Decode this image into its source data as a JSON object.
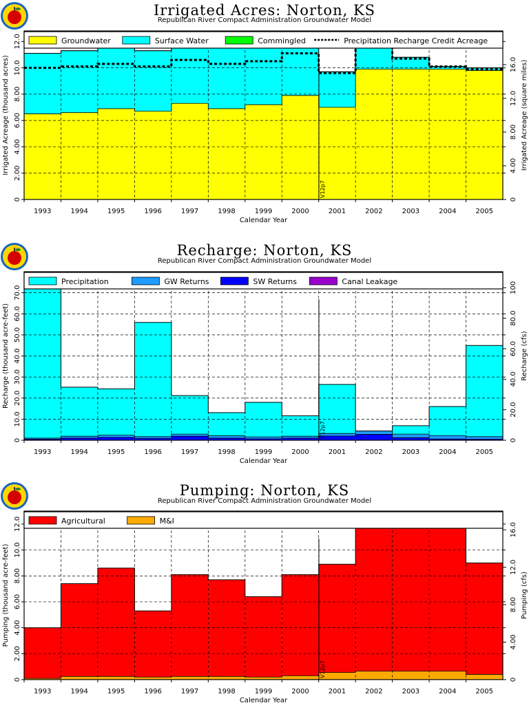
{
  "charts": [
    {
      "title": "Irrigated Acres: Norton, KS",
      "subtitle": "Republican River Compact Administration Groundwater Model",
      "ylabel": "Irrigated Acreage (thousand acres)",
      "y2label": "Irrigated Acreage (square miles)",
      "xlabel": "Calendar Year",
      "marker": "V12p7"
    },
    {
      "title": "Recharge: Norton, KS",
      "subtitle": "Republican River Compact Administration Groundwater Model",
      "ylabel": "Recharge (thousand acre-feet)",
      "y2label": "Recharge (cfs)",
      "xlabel": "Calendar Year",
      "marker": "V12p7"
    },
    {
      "title": "Pumping: Norton, KS",
      "subtitle": "Republican River Compact Administration Groundwater Model",
      "ylabel": "Pumping (thousand acre-feet)",
      "y2label": "Pumping (cfs)",
      "xlabel": "Calendar Year",
      "marker": "V12p7"
    }
  ],
  "chart_data": [
    {
      "type": "area",
      "stacked": true,
      "step": true,
      "categories": [
        "1993",
        "1994",
        "1995",
        "1996",
        "1997",
        "1998",
        "1999",
        "2000",
        "2001",
        "2002",
        "2003",
        "2004",
        "2005"
      ],
      "series": [
        {
          "name": "Groundwater",
          "color": "#ffff00",
          "values": [
            6.5,
            6.6,
            6.9,
            6.7,
            7.3,
            6.9,
            7.2,
            7.9,
            7.0,
            9.9,
            9.9,
            9.9,
            9.8
          ]
        },
        {
          "name": "Surface Water",
          "color": "#00ffff",
          "values": [
            4.6,
            4.7,
            4.7,
            4.6,
            4.6,
            4.6,
            4.5,
            4.6,
            2.7,
            2.5,
            0.9,
            0.2,
            0.2
          ]
        },
        {
          "name": "Commingled",
          "color": "#00ff00",
          "values": [
            0,
            0,
            0,
            0,
            0,
            0,
            0,
            0,
            0,
            0,
            0,
            0,
            0
          ]
        }
      ],
      "lines": [
        {
          "name": "Precipitation Recharge Credit Acreage",
          "style": "dashed",
          "values": [
            10.0,
            10.1,
            10.3,
            10.1,
            10.6,
            10.3,
            10.5,
            11.1,
            9.6,
            12.4,
            10.7,
            10.1,
            9.9
          ]
        }
      ],
      "ylim": [
        0,
        12.8
      ],
      "yticks": [
        "0",
        "2.00",
        "4.00",
        "6.00",
        "8.00",
        "10.0",
        "12.0"
      ],
      "y2lim": [
        0,
        20.0
      ],
      "y2ticks": [
        "0",
        "4.00",
        "8.00",
        "12.0",
        "16.0"
      ],
      "grid": true,
      "legend": "top"
    },
    {
      "type": "area",
      "stacked": true,
      "step": true,
      "categories": [
        "1993",
        "1994",
        "1995",
        "1996",
        "1997",
        "1998",
        "1999",
        "2000",
        "2001",
        "2002",
        "2003",
        "2004",
        "2005"
      ],
      "series": [
        {
          "name": "Canal Leakage",
          "color": "#9900cc",
          "values": [
            0,
            0,
            0,
            0,
            0,
            0,
            0,
            0,
            0,
            0,
            0,
            0,
            0
          ]
        },
        {
          "name": "SW Returns",
          "color": "#0000ff",
          "values": [
            0.5,
            1.0,
            1.4,
            0.9,
            1.9,
            1.0,
            0.7,
            1.0,
            2.0,
            2.8,
            1.2,
            0.6,
            0.5
          ]
        },
        {
          "name": "GW Returns",
          "color": "#1e9bff",
          "values": [
            0.5,
            0.9,
            1.0,
            0.8,
            1.0,
            1.1,
            0.9,
            0.9,
            1.2,
            1.6,
            1.7,
            1.6,
            1.2
          ]
        },
        {
          "name": "Precipitation",
          "color": "#00ffff",
          "values": [
            77.0,
            23.3,
            22.0,
            54.2,
            18.3,
            11.0,
            16.4,
            9.7,
            23.3,
            0,
            4.0,
            13.8,
            43.3
          ]
        }
      ],
      "ylim": [
        0,
        80.0
      ],
      "yticks": [
        "0",
        "10.0",
        "20.0",
        "30.0",
        "40.0",
        "50.0",
        "60.0",
        "70.0"
      ],
      "y2lim": [
        0,
        110.5
      ],
      "y2ticks": [
        "0",
        "20.0",
        "40.0",
        "60.0",
        "80.0",
        "100"
      ],
      "grid": true,
      "legend": "top"
    },
    {
      "type": "area",
      "stacked": true,
      "step": true,
      "categories": [
        "1993",
        "1994",
        "1995",
        "1996",
        "1997",
        "1998",
        "1999",
        "2000",
        "2001",
        "2002",
        "2003",
        "2004",
        "2005"
      ],
      "series": [
        {
          "name": "M&I",
          "color": "#ffaa00",
          "values": [
            0.1,
            0.25,
            0.25,
            0.2,
            0.25,
            0.25,
            0.2,
            0.3,
            0.55,
            0.65,
            0.65,
            0.65,
            0.4
          ]
        },
        {
          "name": "Agricultural",
          "color": "#ff0000",
          "values": [
            3.9,
            7.15,
            8.35,
            5.1,
            7.85,
            7.45,
            6.2,
            7.8,
            8.35,
            12.15,
            11.25,
            12.25,
            8.6
          ]
        }
      ],
      "ylim": [
        0,
        13.0
      ],
      "yticks": [
        "0",
        "2.00",
        "4.00",
        "6.00",
        "8.00",
        "10.0",
        "12.0"
      ],
      "y2lim": [
        0,
        18.0
      ],
      "y2ticks": [
        "0",
        "4.00",
        "8.00",
        "12.0",
        "16.0"
      ],
      "grid": true,
      "legend": "top"
    }
  ]
}
